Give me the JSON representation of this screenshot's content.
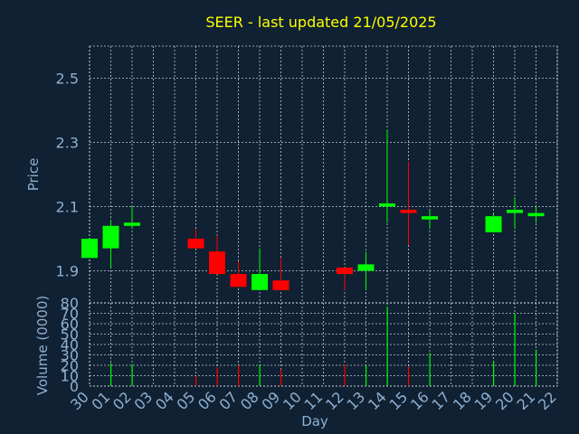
{
  "chart_data": [
    {
      "type": "candlestick",
      "title": "SEER - last updated 21/05/2025",
      "ylabel": "Price",
      "ylim": [
        1.8,
        2.6
      ],
      "yticks": [
        1.9,
        2.1,
        2.3,
        2.5
      ],
      "ytick_labels": [
        "1.9",
        "2.1",
        "2.3",
        "2.5"
      ],
      "grid": true,
      "up_color": "#00ff00",
      "down_color": "#ff0000",
      "days": [
        "30",
        "01",
        "02",
        "03",
        "04",
        "05",
        "06",
        "07",
        "08",
        "09",
        "10",
        "11",
        "12",
        "13",
        "14",
        "15",
        "16",
        "17",
        "18",
        "19",
        "20",
        "21",
        "22"
      ],
      "candles": [
        {
          "day": "30",
          "open": 1.94,
          "high": 2.0,
          "low": 1.94,
          "close": 2.0
        },
        {
          "day": "01",
          "open": 1.97,
          "high": 2.06,
          "low": 1.91,
          "close": 2.04
        },
        {
          "day": "02",
          "open": 2.04,
          "high": 2.1,
          "low": 2.03,
          "close": 2.05
        },
        {
          "day": "05",
          "open": 2.0,
          "high": 2.03,
          "low": 1.97,
          "close": 1.97
        },
        {
          "day": "06",
          "open": 1.96,
          "high": 2.01,
          "low": 1.89,
          "close": 1.89
        },
        {
          "day": "07",
          "open": 1.89,
          "high": 1.93,
          "low": 1.85,
          "close": 1.85
        },
        {
          "day": "08",
          "open": 1.84,
          "high": 1.97,
          "low": 1.84,
          "close": 1.89
        },
        {
          "day": "09",
          "open": 1.87,
          "high": 1.94,
          "low": 1.84,
          "close": 1.84
        },
        {
          "day": "12",
          "open": 1.91,
          "high": 1.91,
          "low": 1.84,
          "close": 1.89
        },
        {
          "day": "13",
          "open": 1.9,
          "high": 1.96,
          "low": 1.84,
          "close": 1.92
        },
        {
          "day": "14",
          "open": 2.1,
          "high": 2.34,
          "low": 2.05,
          "close": 2.11
        },
        {
          "day": "15",
          "open": 2.09,
          "high": 2.24,
          "low": 1.98,
          "close": 2.08
        },
        {
          "day": "16",
          "open": 2.06,
          "high": 2.09,
          "low": 2.03,
          "close": 2.07
        },
        {
          "day": "19",
          "open": 2.02,
          "high": 2.08,
          "low": 2.02,
          "close": 2.07
        },
        {
          "day": "20",
          "open": 2.08,
          "high": 2.13,
          "low": 2.03,
          "close": 2.09
        },
        {
          "day": "21",
          "open": 2.07,
          "high": 2.1,
          "low": 2.05,
          "close": 2.08
        }
      ]
    },
    {
      "type": "bar",
      "ylabel": "Volume (0000)",
      "xlabel": "Day",
      "ylim": [
        0,
        80
      ],
      "yticks": [
        0,
        10,
        20,
        30,
        40,
        50,
        60,
        70,
        80
      ],
      "ytick_labels": [
        "0",
        "10",
        "20",
        "30",
        "40",
        "50",
        "60",
        "70",
        "80"
      ],
      "grid": true,
      "bars": [
        {
          "day": "01",
          "value": 22,
          "color": "#00ff00"
        },
        {
          "day": "02",
          "value": 21,
          "color": "#00ff00"
        },
        {
          "day": "05",
          "value": 10,
          "color": "#ff0000"
        },
        {
          "day": "06",
          "value": 18,
          "color": "#ff0000"
        },
        {
          "day": "07",
          "value": 20,
          "color": "#ff0000"
        },
        {
          "day": "08",
          "value": 21,
          "color": "#00ff00"
        },
        {
          "day": "09",
          "value": 16,
          "color": "#ff0000"
        },
        {
          "day": "12",
          "value": 21,
          "color": "#ff0000"
        },
        {
          "day": "13",
          "value": 20,
          "color": "#00ff00"
        },
        {
          "day": "14",
          "value": 76,
          "color": "#00ff00"
        },
        {
          "day": "15",
          "value": 19,
          "color": "#ff0000"
        },
        {
          "day": "16",
          "value": 32,
          "color": "#00ff00"
        },
        {
          "day": "19",
          "value": 24,
          "color": "#00ff00"
        },
        {
          "day": "20",
          "value": 70,
          "color": "#00ff00"
        },
        {
          "day": "21",
          "value": 35,
          "color": "#00ff00"
        }
      ]
    }
  ]
}
